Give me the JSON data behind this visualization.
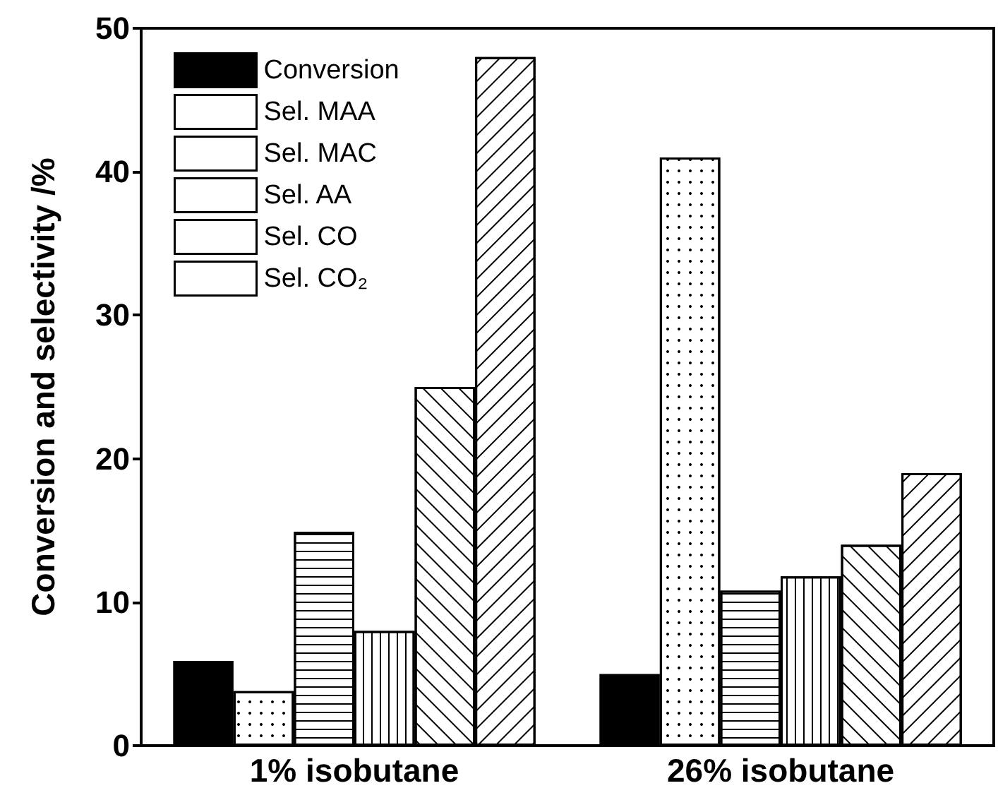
{
  "chart_data": {
    "type": "bar",
    "ylabel": "Conversion and selectivity /%",
    "categories": [
      "1% isobutane",
      "26% isobutane"
    ],
    "series": [
      {
        "name": "Conversion",
        "color": "#000000",
        "values": [
          5.9,
          5.0
        ]
      },
      {
        "name": "Sel. MAA",
        "color": "#ffffff",
        "values": [
          3.8,
          41.0
        ]
      },
      {
        "name": "Sel. MAC",
        "color": "#ffffff",
        "values": [
          14.9,
          10.8
        ]
      },
      {
        "name": "Sel. AA",
        "color": "#ffffff",
        "values": [
          8.0,
          11.8
        ]
      },
      {
        "name": "Sel. CO",
        "color": "#ffffff",
        "values": [
          25.0,
          14.0
        ]
      },
      {
        "name": "Sel. CO₂",
        "color": "#ffffff",
        "values": [
          48.0,
          19.0
        ]
      }
    ],
    "ylim": [
      0,
      50
    ],
    "yticks": [
      0,
      10,
      20,
      30,
      40,
      50
    ],
    "grid": false,
    "legend": "top left"
  }
}
